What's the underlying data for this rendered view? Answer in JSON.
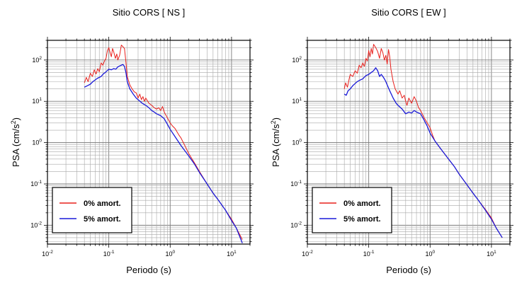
{
  "chart_data": [
    {
      "type": "line",
      "title": "Sitio CORS [ NS ]",
      "xlabel": "Periodo (s)",
      "ylabel_main": "PSA (cm/s",
      "ylabel_sup": "2",
      "ylabel_close": ")",
      "xscale": "log",
      "yscale": "log",
      "xlim": [
        0.01,
        20
      ],
      "ylim": [
        0.0035,
        300
      ],
      "grid": true,
      "legend_position": "bottom-left",
      "x_ticks": [
        {
          "base": "10",
          "exp": "-2",
          "value": 0.01
        },
        {
          "base": "10",
          "exp": "-1",
          "value": 0.1
        },
        {
          "base": "10",
          "exp": "0",
          "value": 1
        },
        {
          "base": "10",
          "exp": "1",
          "value": 10
        }
      ],
      "y_ticks": [
        {
          "base": "10",
          "exp": "-2",
          "value": 0.01
        },
        {
          "base": "10",
          "exp": "-1",
          "value": 0.1
        },
        {
          "base": "10",
          "exp": "0",
          "value": 1
        },
        {
          "base": "10",
          "exp": "1",
          "value": 10
        },
        {
          "base": "10",
          "exp": "2",
          "value": 100
        }
      ],
      "series": [
        {
          "name": "0% amort.",
          "color": "#e8201c",
          "points": [
            [
              0.04,
              28
            ],
            [
              0.043,
              38
            ],
            [
              0.046,
              30
            ],
            [
              0.05,
              48
            ],
            [
              0.054,
              40
            ],
            [
              0.058,
              58
            ],
            [
              0.062,
              46
            ],
            [
              0.066,
              62
            ],
            [
              0.07,
              52
            ],
            [
              0.075,
              85
            ],
            [
              0.08,
              75
            ],
            [
              0.085,
              95
            ],
            [
              0.09,
              110
            ],
            [
              0.095,
              170
            ],
            [
              0.1,
              200
            ],
            [
              0.105,
              150
            ],
            [
              0.11,
              120
            ],
            [
              0.115,
              190
            ],
            [
              0.12,
              160
            ],
            [
              0.128,
              110
            ],
            [
              0.135,
              140
            ],
            [
              0.14,
              100
            ],
            [
              0.15,
              130
            ],
            [
              0.16,
              230
            ],
            [
              0.17,
              210
            ],
            [
              0.18,
              190
            ],
            [
              0.19,
              90
            ],
            [
              0.2,
              40
            ],
            [
              0.22,
              25
            ],
            [
              0.24,
              20
            ],
            [
              0.26,
              17
            ],
            [
              0.28,
              16
            ],
            [
              0.3,
              12
            ],
            [
              0.32,
              15
            ],
            [
              0.34,
              11
            ],
            [
              0.36,
              13
            ],
            [
              0.38,
              10
            ],
            [
              0.4,
              12
            ],
            [
              0.45,
              9
            ],
            [
              0.5,
              8
            ],
            [
              0.55,
              7
            ],
            [
              0.6,
              6.5
            ],
            [
              0.65,
              7
            ],
            [
              0.7,
              6
            ],
            [
              0.75,
              7.5
            ],
            [
              0.8,
              5.5
            ],
            [
              0.9,
              4
            ],
            [
              1.0,
              3
            ],
            [
              1.1,
              2.5
            ],
            [
              1.2,
              2.2
            ],
            [
              1.3,
              1.8
            ],
            [
              1.4,
              1.5
            ],
            [
              1.5,
              1.3
            ],
            [
              1.7,
              0.9
            ],
            [
              2.0,
              0.55
            ],
            [
              2.5,
              0.32
            ],
            [
              3,
              0.2
            ],
            [
              4,
              0.1
            ],
            [
              5,
              0.06
            ],
            [
              6,
              0.042
            ],
            [
              8,
              0.023
            ],
            [
              10,
              0.014
            ],
            [
              12,
              0.0085
            ],
            [
              15,
              0.0045
            ]
          ]
        },
        {
          "name": "5% amort.",
          "color": "#1a1ad8",
          "points": [
            [
              0.04,
              22
            ],
            [
              0.045,
              24
            ],
            [
              0.05,
              26
            ],
            [
              0.055,
              30
            ],
            [
              0.06,
              33
            ],
            [
              0.065,
              36
            ],
            [
              0.07,
              38
            ],
            [
              0.075,
              40
            ],
            [
              0.08,
              45
            ],
            [
              0.09,
              52
            ],
            [
              0.1,
              60
            ],
            [
              0.11,
              58
            ],
            [
              0.12,
              62
            ],
            [
              0.13,
              60
            ],
            [
              0.14,
              68
            ],
            [
              0.15,
              72
            ],
            [
              0.16,
              75
            ],
            [
              0.17,
              78
            ],
            [
              0.18,
              70
            ],
            [
              0.19,
              50
            ],
            [
              0.2,
              30
            ],
            [
              0.22,
              20
            ],
            [
              0.25,
              15
            ],
            [
              0.28,
              12
            ],
            [
              0.3,
              11
            ],
            [
              0.35,
              9
            ],
            [
              0.4,
              8
            ],
            [
              0.45,
              7
            ],
            [
              0.5,
              6
            ],
            [
              0.55,
              5.5
            ],
            [
              0.6,
              5
            ],
            [
              0.7,
              4.5
            ],
            [
              0.8,
              3.8
            ],
            [
              0.9,
              2.8
            ],
            [
              1.0,
              2.1
            ],
            [
              1.2,
              1.4
            ],
            [
              1.5,
              0.85
            ],
            [
              2.0,
              0.48
            ],
            [
              2.5,
              0.3
            ],
            [
              3,
              0.19
            ],
            [
              4,
              0.1
            ],
            [
              5,
              0.06
            ],
            [
              6,
              0.042
            ],
            [
              8,
              0.023
            ],
            [
              10,
              0.013
            ],
            [
              12,
              0.0085
            ],
            [
              15,
              0.0037
            ]
          ]
        }
      ]
    },
    {
      "type": "line",
      "title": "Sitio CORS [ EW ]",
      "xlabel": "Periodo (s)",
      "ylabel_main": "PSA (cm/s",
      "ylabel_sup": "2",
      "ylabel_close": ")",
      "xscale": "log",
      "yscale": "log",
      "xlim": [
        0.01,
        20
      ],
      "ylim": [
        0.0035,
        300
      ],
      "grid": true,
      "legend_position": "bottom-left",
      "x_ticks": [
        {
          "base": "10",
          "exp": "-2",
          "value": 0.01
        },
        {
          "base": "10",
          "exp": "-1",
          "value": 0.1
        },
        {
          "base": "10",
          "exp": "0",
          "value": 1
        },
        {
          "base": "10",
          "exp": "1",
          "value": 10
        }
      ],
      "y_ticks": [
        {
          "base": "10",
          "exp": "-2",
          "value": 0.01
        },
        {
          "base": "10",
          "exp": "-1",
          "value": 0.1
        },
        {
          "base": "10",
          "exp": "0",
          "value": 1
        },
        {
          "base": "10",
          "exp": "1",
          "value": 10
        },
        {
          "base": "10",
          "exp": "2",
          "value": 100
        }
      ],
      "series": [
        {
          "name": "0% amort.",
          "color": "#e8201c",
          "points": [
            [
              0.04,
              20
            ],
            [
              0.042,
              28
            ],
            [
              0.045,
              22
            ],
            [
              0.048,
              35
            ],
            [
              0.05,
              45
            ],
            [
              0.055,
              40
            ],
            [
              0.06,
              55
            ],
            [
              0.065,
              48
            ],
            [
              0.07,
              75
            ],
            [
              0.075,
              65
            ],
            [
              0.08,
              85
            ],
            [
              0.085,
              70
            ],
            [
              0.09,
              110
            ],
            [
              0.095,
              95
            ],
            [
              0.1,
              170
            ],
            [
              0.105,
              120
            ],
            [
              0.11,
              190
            ],
            [
              0.115,
              140
            ],
            [
              0.12,
              240
            ],
            [
              0.13,
              200
            ],
            [
              0.14,
              160
            ],
            [
              0.15,
              110
            ],
            [
              0.16,
              190
            ],
            [
              0.17,
              150
            ],
            [
              0.18,
              100
            ],
            [
              0.19,
              130
            ],
            [
              0.2,
              80
            ],
            [
              0.21,
              180
            ],
            [
              0.22,
              120
            ],
            [
              0.23,
              60
            ],
            [
              0.25,
              30
            ],
            [
              0.27,
              20
            ],
            [
              0.3,
              15
            ],
            [
              0.32,
              18
            ],
            [
              0.35,
              12
            ],
            [
              0.38,
              14
            ],
            [
              0.4,
              10
            ],
            [
              0.42,
              8
            ],
            [
              0.45,
              12
            ],
            [
              0.5,
              9
            ],
            [
              0.55,
              13
            ],
            [
              0.6,
              10
            ],
            [
              0.65,
              7
            ],
            [
              0.7,
              6
            ],
            [
              0.8,
              4
            ],
            [
              0.9,
              3
            ],
            [
              1.0,
              2.3
            ],
            [
              1.1,
              1.5
            ],
            [
              1.2,
              1.1
            ],
            [
              1.4,
              0.8
            ],
            [
              1.7,
              0.55
            ],
            [
              2.0,
              0.4
            ],
            [
              2.5,
              0.26
            ],
            [
              3,
              0.17
            ],
            [
              4,
              0.095
            ],
            [
              5,
              0.06
            ],
            [
              6,
              0.042
            ],
            [
              8,
              0.024
            ],
            [
              10,
              0.015
            ],
            [
              12,
              0.0085
            ],
            [
              15,
              0.005
            ]
          ]
        },
        {
          "name": "5% amort.",
          "color": "#1a1ad8",
          "points": [
            [
              0.04,
              15
            ],
            [
              0.043,
              14
            ],
            [
              0.046,
              18
            ],
            [
              0.05,
              20
            ],
            [
              0.055,
              24
            ],
            [
              0.06,
              27
            ],
            [
              0.065,
              30
            ],
            [
              0.07,
              32
            ],
            [
              0.08,
              35
            ],
            [
              0.09,
              42
            ],
            [
              0.1,
              45
            ],
            [
              0.11,
              50
            ],
            [
              0.12,
              55
            ],
            [
              0.13,
              65
            ],
            [
              0.14,
              55
            ],
            [
              0.15,
              40
            ],
            [
              0.16,
              45
            ],
            [
              0.17,
              40
            ],
            [
              0.18,
              35
            ],
            [
              0.19,
              30
            ],
            [
              0.2,
              25
            ],
            [
              0.22,
              18
            ],
            [
              0.25,
              12
            ],
            [
              0.28,
              9
            ],
            [
              0.3,
              8
            ],
            [
              0.35,
              6.5
            ],
            [
              0.4,
              5
            ],
            [
              0.45,
              5.5
            ],
            [
              0.5,
              5.2
            ],
            [
              0.55,
              6
            ],
            [
              0.6,
              5.5
            ],
            [
              0.7,
              5
            ],
            [
              0.8,
              3.5
            ],
            [
              0.9,
              2.5
            ],
            [
              1.0,
              1.7
            ],
            [
              1.2,
              1.1
            ],
            [
              1.5,
              0.7
            ],
            [
              2.0,
              0.4
            ],
            [
              2.5,
              0.26
            ],
            [
              3,
              0.17
            ],
            [
              4,
              0.095
            ],
            [
              5,
              0.06
            ],
            [
              6,
              0.042
            ],
            [
              8,
              0.023
            ],
            [
              10,
              0.014
            ],
            [
              12,
              0.0085
            ],
            [
              15,
              0.005
            ]
          ]
        }
      ]
    }
  ]
}
